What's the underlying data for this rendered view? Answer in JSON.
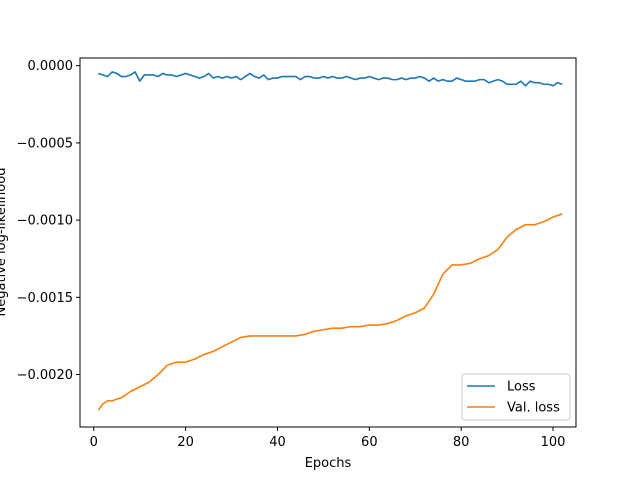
{
  "chart_data": {
    "type": "line",
    "title": "",
    "xlabel": "Epochs",
    "ylabel": "Negative log-likelihood",
    "xlim": [
      -3,
      105
    ],
    "ylim": [
      -0.00234,
      5e-05
    ],
    "grid": false,
    "legend_position": "bottom-right",
    "x_ticks": [
      {
        "value": 0,
        "label": "0"
      },
      {
        "value": 20,
        "label": "20"
      },
      {
        "value": 40,
        "label": "40"
      },
      {
        "value": 60,
        "label": "60"
      },
      {
        "value": 80,
        "label": "80"
      },
      {
        "value": 100,
        "label": "100"
      }
    ],
    "y_ticks": [
      {
        "value": 0.0,
        "label": "0.0000"
      },
      {
        "value": -0.0005,
        "label": "−0.0005"
      },
      {
        "value": -0.001,
        "label": "−0.0010"
      },
      {
        "value": -0.0015,
        "label": "−0.0015"
      },
      {
        "value": -0.002,
        "label": "−0.0020"
      }
    ],
    "series": [
      {
        "name": "Loss",
        "color": "#1f77b4",
        "x": [
          1,
          2,
          3,
          4,
          5,
          6,
          7,
          8,
          9,
          10,
          11,
          12,
          13,
          14,
          15,
          16,
          17,
          18,
          19,
          20,
          21,
          22,
          23,
          24,
          25,
          26,
          27,
          28,
          29,
          30,
          31,
          32,
          33,
          34,
          35,
          36,
          37,
          38,
          39,
          40,
          41,
          42,
          43,
          44,
          45,
          46,
          47,
          48,
          49,
          50,
          51,
          52,
          53,
          54,
          55,
          56,
          57,
          58,
          59,
          60,
          61,
          62,
          63,
          64,
          65,
          66,
          67,
          68,
          69,
          70,
          71,
          72,
          73,
          74,
          75,
          76,
          77,
          78,
          79,
          80,
          81,
          82,
          83,
          84,
          85,
          86,
          87,
          88,
          89,
          90,
          91,
          92,
          93,
          94,
          95,
          96,
          97,
          98,
          99,
          100,
          101,
          102
        ],
        "values": [
          -5e-05,
          -6e-05,
          -7e-05,
          -4e-05,
          -5e-05,
          -7e-05,
          -7e-05,
          -6e-05,
          -4e-05,
          -0.0001,
          -6e-05,
          -6e-05,
          -6e-05,
          -7e-05,
          -5e-05,
          -6e-05,
          -6e-05,
          -7e-05,
          -6e-05,
          -5e-05,
          -6e-05,
          -7e-05,
          -8e-05,
          -7e-05,
          -5e-05,
          -8e-05,
          -7e-05,
          -8e-05,
          -7e-05,
          -8e-05,
          -7e-05,
          -9e-05,
          -7e-05,
          -5e-05,
          -7e-05,
          -8e-05,
          -6e-05,
          -9e-05,
          -8e-05,
          -8e-05,
          -7e-05,
          -7e-05,
          -7e-05,
          -7e-05,
          -9e-05,
          -7e-05,
          -7e-05,
          -8e-05,
          -8e-05,
          -7e-05,
          -8e-05,
          -7e-05,
          -8e-05,
          -8e-05,
          -7e-05,
          -8e-05,
          -9e-05,
          -8e-05,
          -8e-05,
          -7e-05,
          -8e-05,
          -9e-05,
          -8e-05,
          -8e-05,
          -9e-05,
          -9e-05,
          -8e-05,
          -9e-05,
          -8e-05,
          -8e-05,
          -7e-05,
          -8e-05,
          -0.0001,
          -8e-05,
          -0.0001,
          -9e-05,
          -0.0001,
          -0.0001,
          -8e-05,
          -9e-05,
          -0.0001,
          -0.0001,
          -0.0001,
          -9e-05,
          -9e-05,
          -0.00011,
          -0.0001,
          -9e-05,
          -0.0001,
          -0.00012,
          -0.00012,
          -0.00012,
          -0.0001,
          -0.00013,
          -0.0001,
          -0.00011,
          -0.00011,
          -0.00012,
          -0.00012,
          -0.00013,
          -0.00011,
          -0.00012
        ]
      },
      {
        "name": "Val. loss",
        "color": "#ff7f0e",
        "x": [
          1,
          2,
          3,
          4,
          6,
          8,
          10,
          12,
          14,
          16,
          18,
          20,
          22,
          24,
          26,
          28,
          30,
          32,
          34,
          36,
          38,
          40,
          42,
          44,
          46,
          48,
          50,
          52,
          54,
          56,
          58,
          60,
          62,
          64,
          66,
          68,
          70,
          72,
          74,
          76,
          78,
          80,
          82,
          84,
          86,
          88,
          90,
          92,
          94,
          96,
          98,
          100,
          102
        ],
        "values": [
          -0.00223,
          -0.00219,
          -0.00217,
          -0.00217,
          -0.00215,
          -0.00211,
          -0.00208,
          -0.00205,
          -0.002,
          -0.00194,
          -0.00192,
          -0.00192,
          -0.0019,
          -0.00187,
          -0.00185,
          -0.00182,
          -0.00179,
          -0.00176,
          -0.00175,
          -0.00175,
          -0.00175,
          -0.00175,
          -0.00175,
          -0.00175,
          -0.00174,
          -0.00172,
          -0.00171,
          -0.0017,
          -0.0017,
          -0.00169,
          -0.00169,
          -0.00168,
          -0.00168,
          -0.00167,
          -0.00165,
          -0.00162,
          -0.0016,
          -0.00157,
          -0.00148,
          -0.00135,
          -0.00129,
          -0.00129,
          -0.00128,
          -0.00125,
          -0.00123,
          -0.00119,
          -0.00111,
          -0.00106,
          -0.00103,
          -0.00103,
          -0.00101,
          -0.00098,
          -0.00096
        ]
      }
    ]
  }
}
